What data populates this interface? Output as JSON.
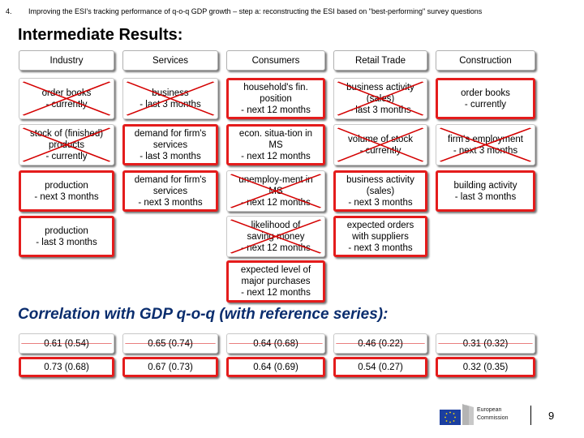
{
  "header": {
    "number": "4.",
    "title": "Improving the ESI's tracking performance of q-o-q GDP growth – step a: reconstructing the ESI based on \"best-performing\" survey questions"
  },
  "intermediate_title": "Intermediate Results:",
  "correlation_title": "Correlation with GDP q-o-q (with reference series):",
  "columns": [
    "Industry",
    "Services",
    "Consumers",
    "Retail Trade",
    "Construction"
  ],
  "questions": {
    "industry": [
      {
        "label": "order books\n- currently",
        "selected": false
      },
      {
        "label": "stock of (finished)\nproducts\n- currently",
        "selected": false
      },
      {
        "label": "production\n- next 3 months",
        "selected": true
      },
      {
        "label": "production\n- last 3 months",
        "selected": true
      }
    ],
    "services": [
      {
        "label": "business\n- last 3 months",
        "selected": false
      },
      {
        "label": "demand for firm's\nservices\n- last 3 months",
        "selected": true
      },
      {
        "label": "demand for firm's\nservices\n- next 3 months",
        "selected": true
      }
    ],
    "consumers": [
      {
        "label": "household's fin.\nposition\n- next 12 months",
        "selected": true
      },
      {
        "label": "econ. situa-tion in\nMS\n- next 12 months",
        "selected": true
      },
      {
        "label": "unemploy-ment in\nMS\n- next 12 months",
        "selected": false
      },
      {
        "label": "likelihood of\nsaving money\n- next 12 months",
        "selected": false
      },
      {
        "label": "expected level of\nmajor purchases\n- next 12 months",
        "selected": true
      }
    ],
    "retail": [
      {
        "label": "business activity\n(sales)\n- last 3 months",
        "selected": false
      },
      {
        "label": "volume of stock\n- currently",
        "selected": false
      },
      {
        "label": "business activity\n(sales)\n- next 3 months",
        "selected": true
      },
      {
        "label": "expected orders\nwith suppliers\n- next 3 months",
        "selected": true
      }
    ],
    "construction": [
      {
        "label": "order books\n- currently",
        "selected": true
      },
      {
        "label": "firm's employment\n- next 3 months",
        "selected": false
      },
      {
        "label": "building activity\n- last 3 months",
        "selected": true
      }
    ]
  },
  "correlations": {
    "row1": [
      "0.61 (0.54)",
      "0.65 (0.74)",
      "0.64 (0.68)",
      "0.46 (0.22)",
      "0.31 (0.32)"
    ],
    "row2": [
      "0.73 (0.68)",
      "0.67 (0.73)",
      "0.64 (0.69)",
      "0.54 (0.27)",
      "0.32 (0.35)"
    ]
  },
  "logo": {
    "line1": "European",
    "line2": "Commission"
  },
  "page_number": "9",
  "colors": {
    "highlight": "#e41c1c",
    "strike": "#d40000",
    "correlation_title": "#0a2d6e"
  }
}
